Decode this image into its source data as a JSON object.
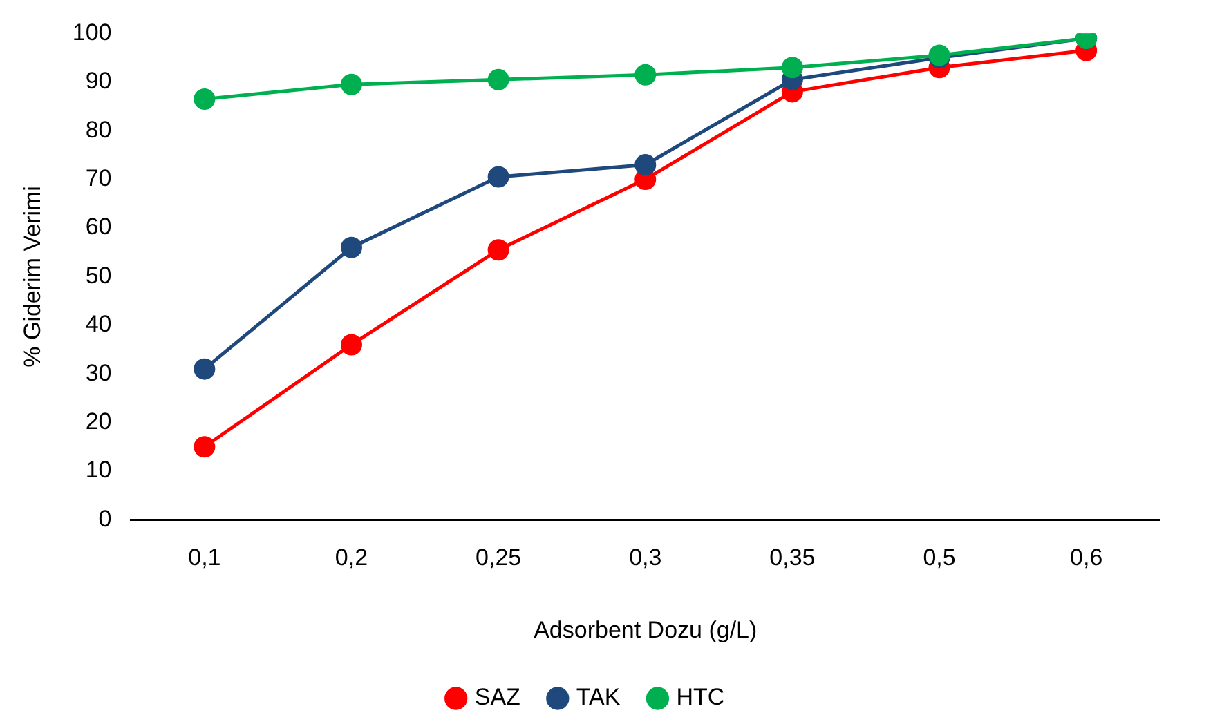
{
  "chart_data": {
    "type": "line",
    "xlabel": "Adsorbent Dozu (g/L)",
    "ylabel": "% Giderim Verimi",
    "categories": [
      "0,1",
      "0,2",
      "0,25",
      "0,3",
      "0,35",
      "0,5",
      "0,6"
    ],
    "series": [
      {
        "name": "SAZ",
        "color": "#ff0000",
        "values": [
          15,
          36,
          55.5,
          70,
          88,
          93,
          96.5
        ]
      },
      {
        "name": "TAK",
        "color": "#1f497d",
        "values": [
          31,
          56,
          70.5,
          73,
          90.5,
          95,
          99
        ]
      },
      {
        "name": "HTC",
        "color": "#00b050",
        "values": [
          86.5,
          89.5,
          90.5,
          91.5,
          93,
          95.5,
          99
        ]
      }
    ],
    "ylim": [
      0,
      100
    ],
    "yticks": [
      0,
      10,
      20,
      30,
      40,
      50,
      60,
      70,
      80,
      90,
      100
    ],
    "grid": false,
    "legend": "bottom",
    "marker": "circle",
    "line_style": "solid"
  }
}
